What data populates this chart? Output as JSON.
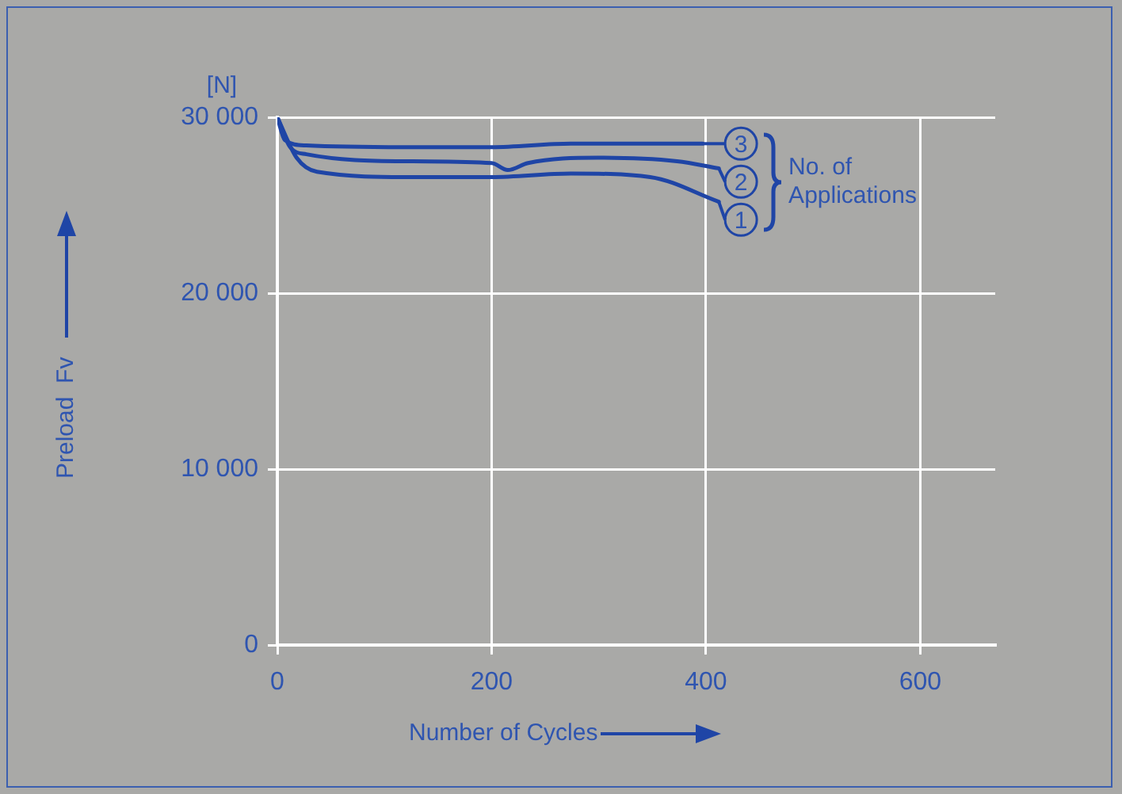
{
  "chart_data": {
    "type": "line",
    "xlabel": "Number of Cycles",
    "ylabel": "Preload  Fv",
    "x": [
      0,
      7,
      27,
      126,
      200,
      274,
      348,
      397
    ],
    "series": [
      {
        "name": "3",
        "color": "#1f45a6",
        "values": [
          30000,
          28700,
          28400,
          28300,
          28300,
          28500,
          28500,
          28500
        ]
      },
      {
        "name": "2",
        "color": "#1f45a6",
        "x": [
          0,
          12,
          27,
          126,
          200,
          215,
          234,
          299,
          373,
          412
        ],
        "values": [
          30000,
          28300,
          27900,
          27500,
          27400,
          27000,
          27400,
          27700,
          27500,
          27100
        ]
      },
      {
        "name": "1",
        "color": "#1f45a6",
        "x": [
          0,
          18,
          37,
          126,
          200,
          274,
          348,
          412
        ],
        "values": [
          30000,
          27700,
          26900,
          26600,
          26600,
          26800,
          26600,
          25200
        ]
      }
    ],
    "xlim": [
      0,
      670
    ],
    "xticks": [
      0,
      200,
      400,
      600
    ],
    "ylim": [
      0,
      30000
    ],
    "yticks": [
      0,
      {
        "value": 10000,
        "label": "10 000"
      },
      {
        "value": 20000,
        "label": "20 000"
      },
      {
        "value": 30000,
        "label": "30 000"
      }
    ],
    "grid": true,
    "legend": "right",
    "marker": "none",
    "line_style": "solid",
    "annotations": [
      "[N]",
      "No. of Applications"
    ]
  }
}
